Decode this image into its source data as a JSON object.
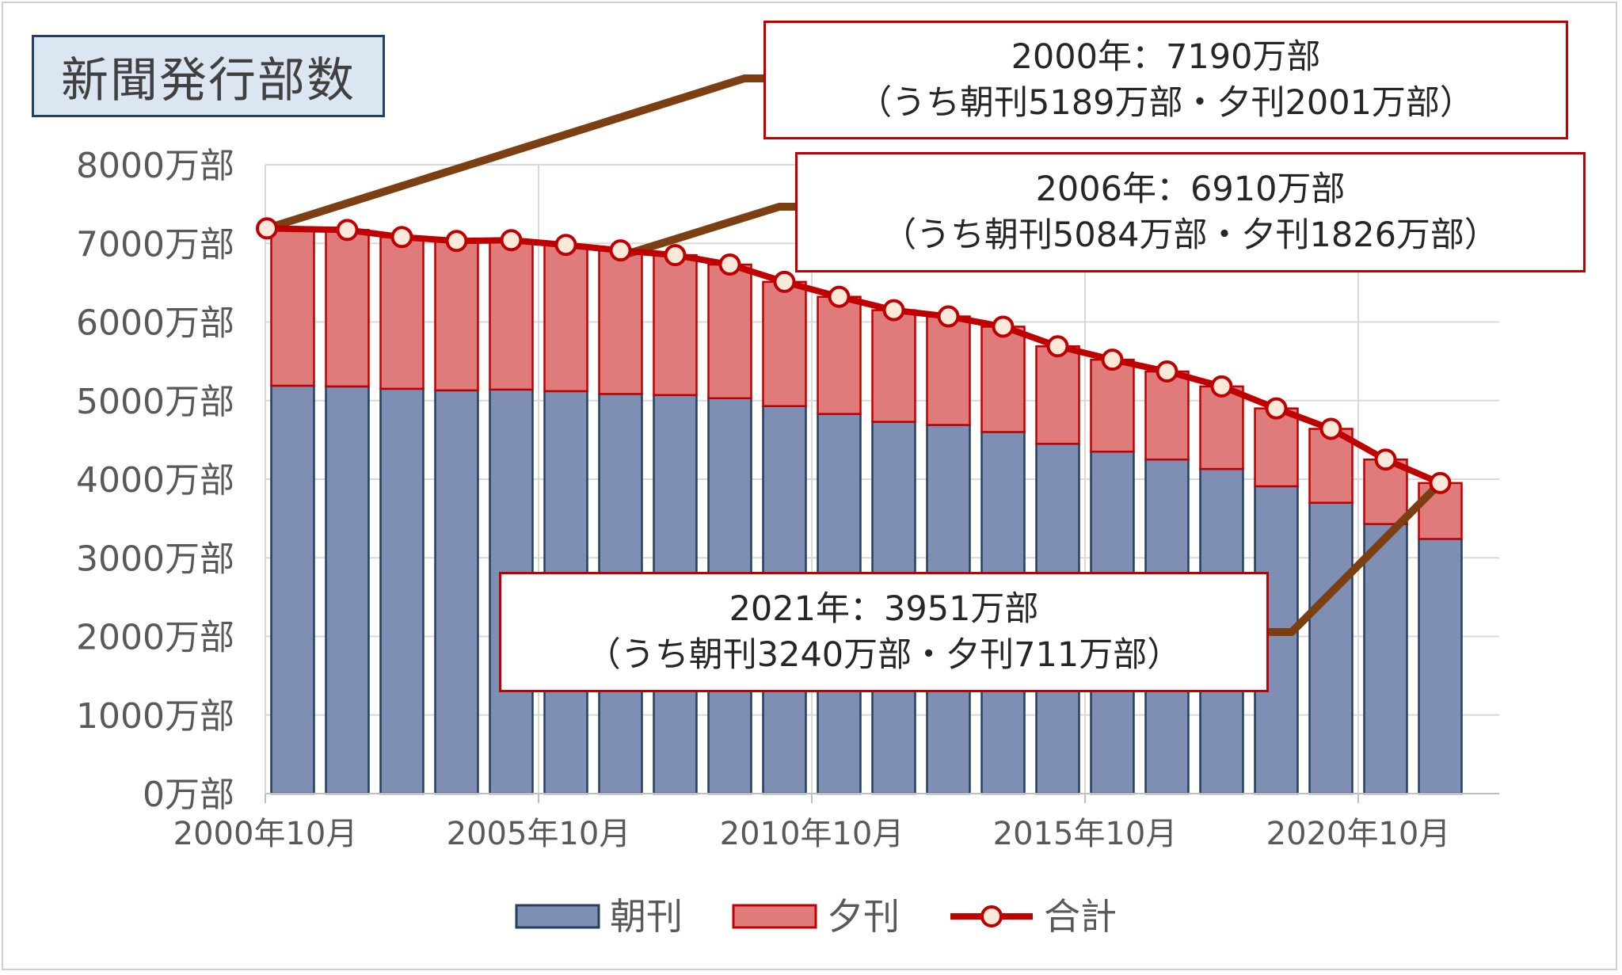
{
  "title": "新聞発行部数",
  "callouts": [
    {
      "line1": "2000年：7190万部",
      "line2": "（うち朝刊5189万部・夕刊2001万部）"
    },
    {
      "line1": "2006年：6910万部",
      "line2": "（うち朝刊5084万部・夕刊1826万部）"
    },
    {
      "line1": "2021年：3951万部",
      "line2": "（うち朝刊3240万部・夕刊711万部）"
    }
  ],
  "colors": {
    "morning": "#7f8fb3",
    "morning_edge": "#243f60",
    "evening": "#e07b7b",
    "evening_edge": "#c00000",
    "total_line": "#c00000",
    "marker_fill": "#fde9d9",
    "leader": "#7b3f12",
    "grid": "#d9d9d9",
    "text": "#595959"
  },
  "chart_data": {
    "type": "bar",
    "stacked": true,
    "title": "新聞発行部数",
    "x": [
      "2000年10月",
      "2001年10月",
      "2002年10月",
      "2003年10月",
      "2004年10月",
      "2005年10月",
      "2006年10月",
      "2007年10月",
      "2008年10月",
      "2009年10月",
      "2010年10月",
      "2011年10月",
      "2012年10月",
      "2013年10月",
      "2014年10月",
      "2015年10月",
      "2016年10月",
      "2017年10月",
      "2018年10月",
      "2019年10月",
      "2020年10月",
      "2021年10月"
    ],
    "x_tick_labels": [
      "2000年10月",
      "2005年10月",
      "2010年10月",
      "2015年10月",
      "2020年10月"
    ],
    "y_tick_labels": [
      "0万部",
      "1000万部",
      "2000万部",
      "3000万部",
      "4000万部",
      "5000万部",
      "6000万部",
      "7000万部",
      "8000万部"
    ],
    "ylim": [
      0,
      8000
    ],
    "grid": true,
    "legend_position": "bottom",
    "series": [
      {
        "name": "朝刊",
        "kind": "bar",
        "values": [
          5189,
          5180,
          5150,
          5130,
          5140,
          5120,
          5084,
          5070,
          5030,
          4930,
          4830,
          4730,
          4690,
          4600,
          4450,
          4350,
          4250,
          4130,
          3910,
          3700,
          3430,
          3240
        ]
      },
      {
        "name": "夕刊",
        "kind": "bar",
        "values": [
          2001,
          1990,
          1930,
          1900,
          1900,
          1860,
          1826,
          1780,
          1700,
          1580,
          1490,
          1420,
          1380,
          1340,
          1240,
          1170,
          1120,
          1050,
          990,
          940,
          820,
          711
        ]
      },
      {
        "name": "合計",
        "kind": "line",
        "values": [
          7190,
          7170,
          7080,
          7030,
          7040,
          6980,
          6910,
          6850,
          6730,
          6510,
          6320,
          6150,
          6070,
          5940,
          5690,
          5520,
          5370,
          5180,
          4900,
          4640,
          4250,
          3951
        ]
      }
    ]
  }
}
